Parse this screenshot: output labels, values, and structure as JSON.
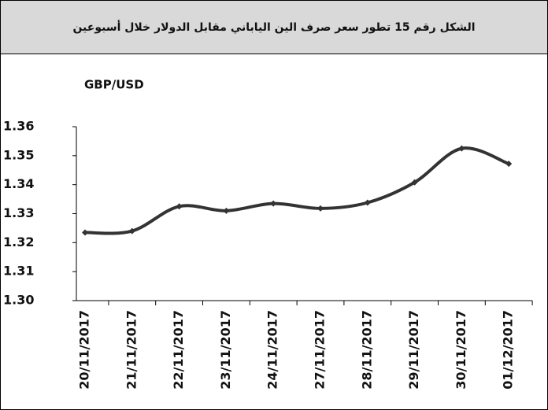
{
  "chart_data": {
    "type": "line",
    "title": "الشكل رقم 15 تطور سعر صرف الين الياباني مقابل الدولار خلال أسبوعين",
    "y_label": "GBP/USD",
    "categories": [
      "20/11/2017",
      "21/11/2017",
      "22/11/2017",
      "23/11/2017",
      "24/11/2017",
      "27/11/2017",
      "28/11/2017",
      "29/11/2017",
      "30/11/2017",
      "01/12/2017"
    ],
    "values": [
      1.3235,
      1.324,
      1.3325,
      1.331,
      1.3335,
      1.3318,
      1.3338,
      1.3408,
      1.3525,
      1.3472
    ],
    "color": "#333333",
    "ylim": [
      1.3,
      1.36
    ],
    "yticks": [
      {
        "value": 1.3,
        "label": "1.30"
      },
      1.31,
      1.32,
      1.33,
      1.34,
      1.35,
      1.36
    ],
    "smooth": true
  }
}
